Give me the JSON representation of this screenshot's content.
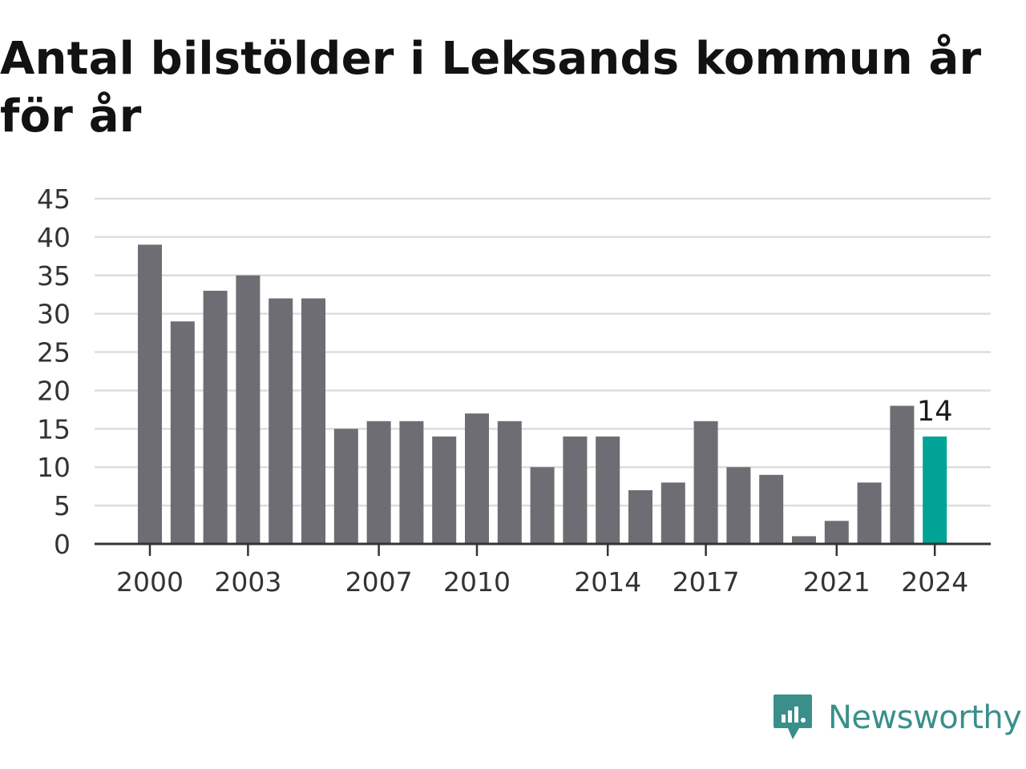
{
  "chart_data": {
    "type": "bar",
    "title": "Antal bilstölder i Leksands kommun år för år",
    "categories": [
      "2000",
      "2001",
      "2002",
      "2003",
      "2004",
      "2005",
      "2006",
      "2007",
      "2008",
      "2009",
      "2010",
      "2011",
      "2012",
      "2013",
      "2014",
      "2015",
      "2016",
      "2017",
      "2018",
      "2019",
      "2020",
      "2021",
      "2022",
      "2023",
      "2024"
    ],
    "values": [
      39,
      29,
      33,
      35,
      32,
      32,
      15,
      16,
      16,
      14,
      17,
      16,
      10,
      14,
      14,
      7,
      8,
      16,
      10,
      9,
      1,
      3,
      8,
      18,
      14
    ],
    "x_tick_labels": [
      "2000",
      "2003",
      "2007",
      "2010",
      "2014",
      "2017",
      "2021",
      "2024"
    ],
    "y_ticks": [
      0,
      5,
      10,
      15,
      20,
      25,
      30,
      35,
      40,
      45
    ],
    "ylim": [
      0,
      45
    ],
    "xlabel": "",
    "ylabel": "",
    "highlight_category": "2024",
    "highlight_label": "14",
    "grid": true,
    "legend": false,
    "colors": {
      "bar": "#6e6d73",
      "highlight": "#00a396",
      "grid": "#dddddd",
      "axis": "#333333"
    }
  },
  "brand": {
    "name": "Newsworthy",
    "logo_icon": "bar-chart-speech-bubble-icon",
    "color": "#3a8f8a"
  }
}
